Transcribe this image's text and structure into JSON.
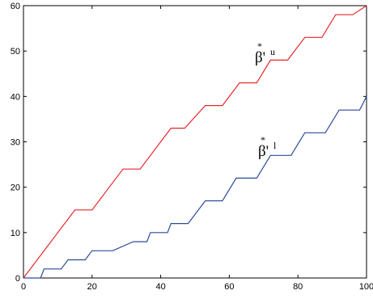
{
  "chart_data": {
    "type": "line",
    "title": "",
    "xlabel": "",
    "ylabel": "",
    "xlim": [
      0,
      100
    ],
    "ylim": [
      0,
      60
    ],
    "x_ticks": [
      0,
      20,
      40,
      60,
      80,
      100
    ],
    "y_ticks": [
      0,
      10,
      20,
      30,
      40,
      50,
      60
    ],
    "grid": false,
    "legend": "none",
    "series": [
      {
        "color": "#e8262b",
        "annotation": {
          "base": "β'",
          "star": "*",
          "sup": "u"
        },
        "x": [
          0,
          15,
          20,
          29,
          34,
          43,
          47,
          53,
          58,
          63,
          68,
          72,
          77,
          82,
          87,
          91,
          96,
          100
        ],
        "y": [
          0,
          15,
          15,
          24,
          24,
          33,
          33,
          38,
          38,
          43,
          43,
          48,
          48,
          53,
          53,
          58,
          58,
          60
        ]
      },
      {
        "color": "#2b4a9a",
        "annotation": {
          "base": "β'",
          "star": "*",
          "sup": "l"
        },
        "x": [
          0,
          5,
          6,
          11,
          13,
          18,
          20,
          25,
          26,
          32,
          33,
          36,
          37,
          42,
          43,
          47,
          48,
          53,
          54,
          57,
          58,
          62,
          63,
          67,
          68,
          72,
          73,
          77,
          78,
          82,
          83,
          87,
          88,
          92,
          93,
          97,
          98,
          100
        ],
        "y": [
          0,
          0,
          2,
          2,
          4,
          4,
          6,
          6,
          6,
          8,
          8,
          8,
          10,
          10,
          12,
          12,
          12,
          17,
          17,
          17,
          17,
          22,
          22,
          22,
          22,
          27,
          27,
          27,
          27,
          32,
          32,
          32,
          32,
          37,
          37,
          37,
          37,
          40
        ]
      }
    ]
  }
}
